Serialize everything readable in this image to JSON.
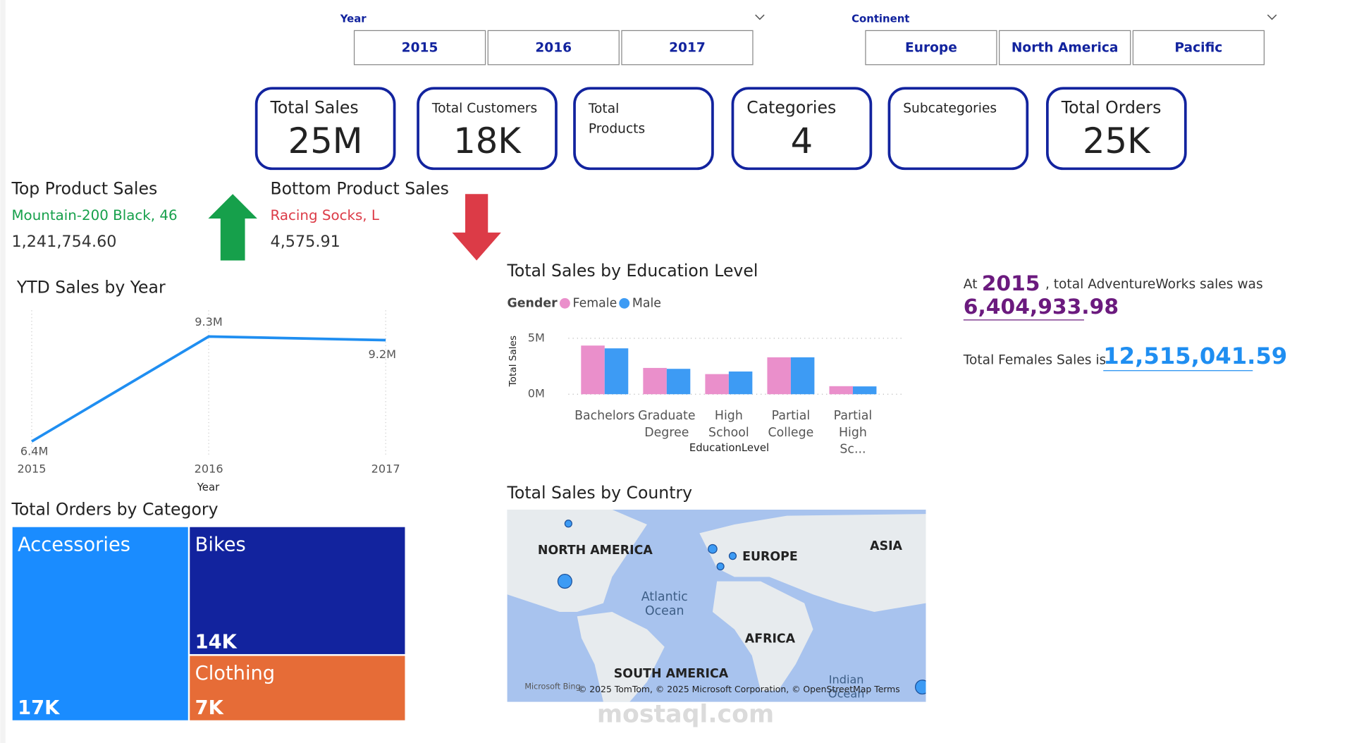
{
  "slicers": [
    {
      "title": "Year",
      "options": [
        "2015",
        "2016",
        "2017"
      ]
    },
    {
      "title": "Continent",
      "options": [
        "Europe",
        "North America",
        "Pacific"
      ]
    }
  ],
  "cards": [
    {
      "label": "Total Sales",
      "value": "25M"
    },
    {
      "label": "Total Customers",
      "value": "18K"
    },
    {
      "label": "Total Products"
    },
    {
      "label": "Categories",
      "value": "4"
    },
    {
      "label": "Subcategories"
    },
    {
      "label": "Total Orders",
      "value": "25K"
    }
  ],
  "top_product": {
    "title": "Top Product Sales",
    "name": "Mountain-200 Black, 46",
    "value": "1,241,754.60"
  },
  "bottom_product": {
    "title": "Bottom Product Sales",
    "name": "Racing Socks, L",
    "value": "4,575.91"
  },
  "summary": {
    "prefix": "At",
    "year": "2015",
    "text": ", total AdventureWorks sales was",
    "sales": "6,404,933.98",
    "female_text": "Total Females Sales is",
    "female_sales": "12,515,041.59"
  },
  "map": {
    "title": "Total Sales by Country",
    "labels": [
      "NORTH AMERICA",
      "EUROPE",
      "ASIA",
      "Atlantic Ocean",
      "AFRICA",
      "SOUTH AMERICA",
      "Indian Ocean"
    ],
    "attribution": "© 2025 TomTom, © 2025 Microsoft Corporation, © OpenStreetMap  Terms",
    "brand": "Microsoft Bing"
  },
  "watermark": "mostaql.com",
  "chart_data": [
    {
      "type": "line",
      "title": "YTD Sales by Year",
      "xlabel": "Year",
      "x": [
        2015,
        2016,
        2017
      ],
      "xticks": [
        2015,
        2016,
        2017
      ],
      "values": [
        6400000,
        9300000,
        9200000
      ],
      "value_labels": [
        "6.4M",
        "9.3M",
        "9.2M"
      ],
      "color": "#1f8ef1"
    },
    {
      "type": "bar",
      "title": "Total Sales by Education Level",
      "legend_title": "Gender",
      "xlabel": "EducationLevel",
      "ylabel": "Total Sales",
      "categories": [
        "Bachelors",
        "Graduate Degree",
        "High School",
        "Partial College",
        "Partial High Sc..."
      ],
      "series": [
        {
          "name": "Female",
          "color": "#ea8fcb",
          "values": [
            4350000,
            2350000,
            1800000,
            3300000,
            720000
          ]
        },
        {
          "name": "Male",
          "color": "#3d9bf4",
          "values": [
            4100000,
            2270000,
            2030000,
            3300000,
            700000
          ]
        }
      ],
      "ylim": [
        0,
        5000000
      ],
      "yticks": [
        {
          "value": 0,
          "label": "0M"
        },
        {
          "value": 5000000,
          "label": "5M"
        }
      ],
      "grid": true
    },
    {
      "type": "treemap",
      "title": "Total Orders by Category",
      "categories": [
        "Accessories",
        "Bikes",
        "Clothing"
      ],
      "values": [
        17000,
        14000,
        7000
      ],
      "value_labels": [
        "17K",
        "14K",
        "7K"
      ],
      "colors": [
        "#1a8cff",
        "#12239e",
        "#e66c37"
      ]
    }
  ]
}
